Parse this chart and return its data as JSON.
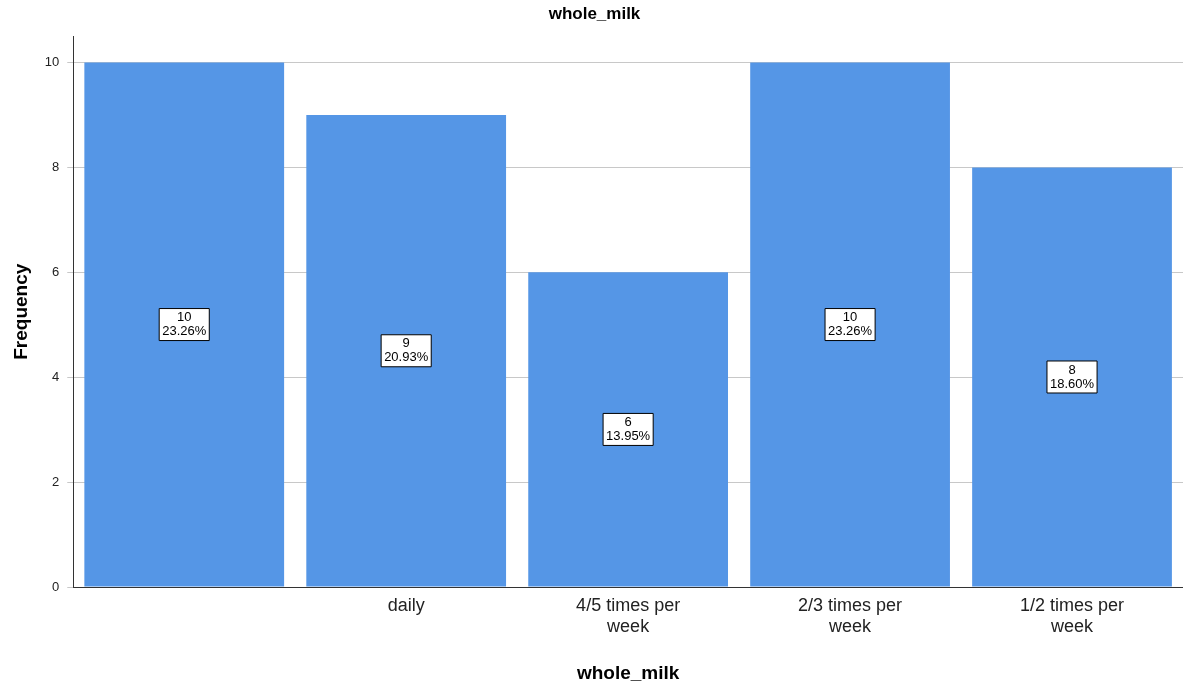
{
  "chart_data": {
    "type": "bar",
    "title": "whole_milk",
    "xlabel": "whole_milk",
    "ylabel": "Frequency",
    "categories": [
      null,
      "daily",
      "4/5 times per week",
      "2/3 times per week",
      "1/2 times per week"
    ],
    "values": [
      10,
      9,
      6,
      10,
      8
    ],
    "color": "#5596e6",
    "value_labels": [
      "10\n23.26%",
      "9\n20.93%",
      "6\n13.95%",
      "10\n23.26%",
      "8\n18.60%"
    ],
    "ylim": [
      0,
      10.5
    ],
    "yticks": [
      0,
      2,
      4,
      6,
      8,
      10
    ],
    "grid": "y",
    "legend": false
  }
}
